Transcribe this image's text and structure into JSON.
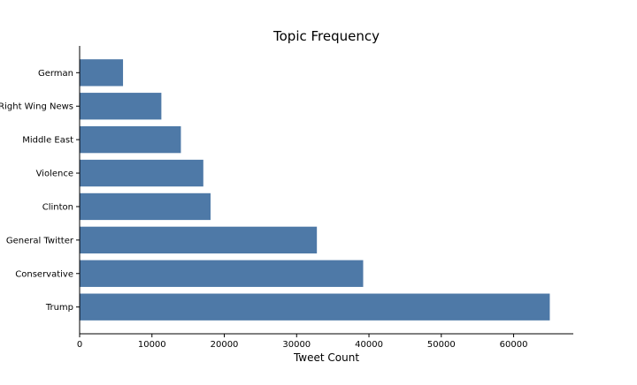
{
  "chart_data": {
    "type": "bar",
    "orientation": "horizontal",
    "title": "Topic Frequency",
    "xlabel": "Tweet Count",
    "ylabel": "",
    "categories": [
      "Trump",
      "Conservative",
      "General Twitter",
      "Clinton",
      "Violence",
      "Middle East",
      "Right Wing News",
      "German"
    ],
    "values": [
      65000,
      39200,
      32800,
      18100,
      17100,
      14000,
      11300,
      6000
    ],
    "xlim": [
      0,
      68250
    ],
    "xticks": [
      0,
      10000,
      20000,
      30000,
      40000,
      50000,
      60000
    ],
    "xtick_labels": [
      "0",
      "10000",
      "20000",
      "30000",
      "40000",
      "50000",
      "60000"
    ],
    "grid": false,
    "bar_color": "#4e79a7"
  }
}
